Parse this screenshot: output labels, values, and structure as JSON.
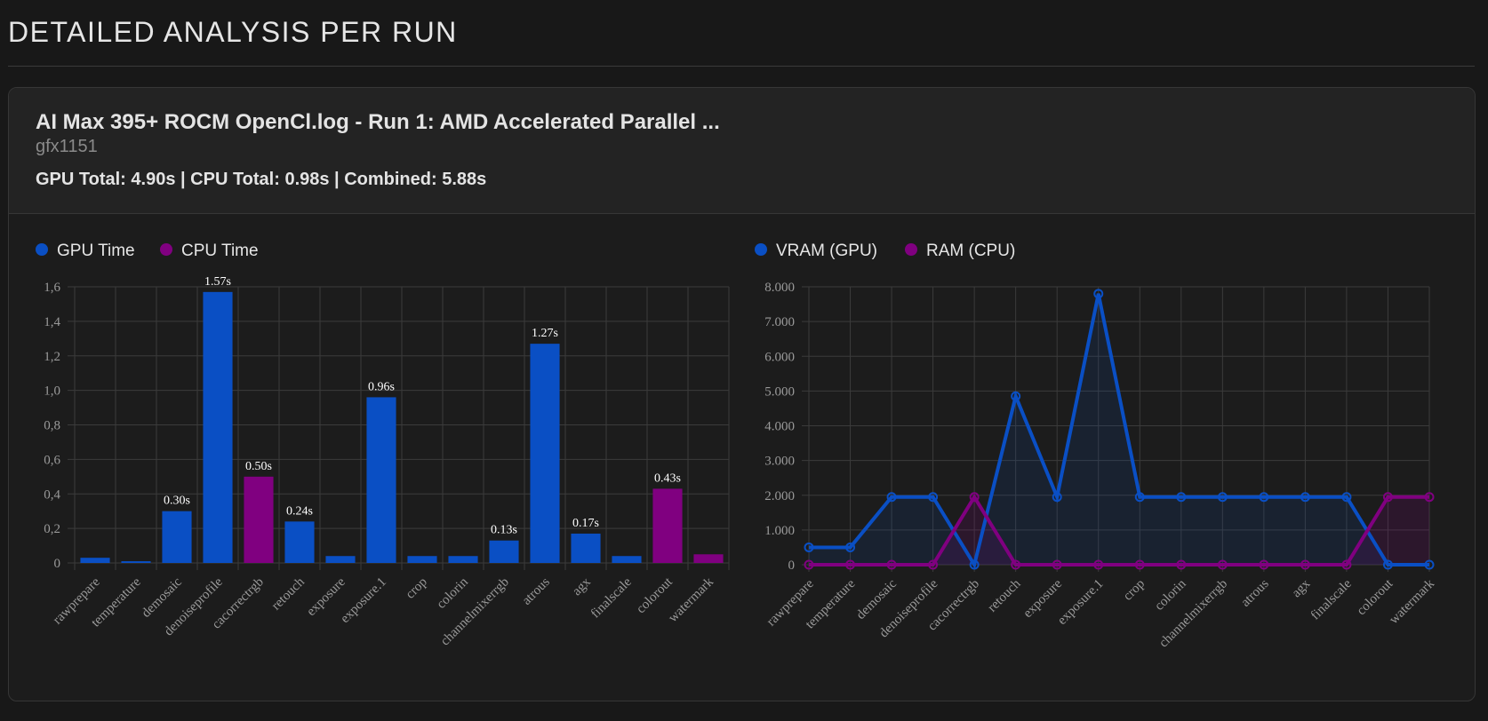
{
  "page": {
    "section_title": "DETAILED ANALYSIS PER RUN"
  },
  "run": {
    "title": "AI Max 395+ ROCM OpenCl.log - Run 1: AMD Accelerated Parallel ...",
    "device": "gfx1151",
    "totals": "GPU Total: 4.90s | CPU Total: 0.98s | Combined: 5.88s"
  },
  "colors": {
    "gpu": "#0a4fc4",
    "cpu": "#800080",
    "grid": "#3b3b3b",
    "axis_text": "#9a9a9a",
    "label_text": "#ffffff"
  },
  "chart_data": [
    {
      "type": "bar",
      "title": "",
      "legend": [
        {
          "name": "GPU Time",
          "color": "#0a4fc4"
        },
        {
          "name": "CPU Time",
          "color": "#800080"
        }
      ],
      "categories": [
        "rawprepare",
        "temperature",
        "demosaic",
        "denoiseprofile",
        "cacorrectrgb",
        "retouch",
        "exposure",
        "exposure.1",
        "crop",
        "colorin",
        "channelmixerrgb",
        "atrous",
        "agx",
        "finalscale",
        "colorout",
        "watermark"
      ],
      "values": [
        0.03,
        0.01,
        0.3,
        1.57,
        0.5,
        0.24,
        0.04,
        0.96,
        0.04,
        0.04,
        0.13,
        1.27,
        0.17,
        0.04,
        0.43,
        0.05
      ],
      "device": [
        "GPU",
        "GPU",
        "GPU",
        "GPU",
        "CPU",
        "GPU",
        "GPU",
        "GPU",
        "GPU",
        "GPU",
        "GPU",
        "GPU",
        "GPU",
        "GPU",
        "CPU",
        "CPU"
      ],
      "data_labels": [
        "",
        "",
        "0.30s",
        "1.57s",
        "0.50s",
        "0.24s",
        "",
        "0.96s",
        "",
        "",
        "0.13s",
        "1.27s",
        "0.17s",
        "",
        "0.43s",
        ""
      ],
      "yticks": [
        "0",
        "0,2",
        "0,4",
        "0,6",
        "0,8",
        "1,0",
        "1,2",
        "1,4",
        "1,6"
      ],
      "ylim": [
        0,
        1.6
      ],
      "xlabel": "",
      "ylabel": ""
    },
    {
      "type": "area",
      "title": "",
      "categories": [
        "rawprepare",
        "temperature",
        "demosaic",
        "denoiseprofile",
        "cacorrectrgb",
        "retouch",
        "exposure",
        "exposure.1",
        "crop",
        "colorin",
        "channelmixerrgb",
        "atrous",
        "agx",
        "finalscale",
        "colorout",
        "watermark"
      ],
      "series": [
        {
          "name": "VRAM (GPU)",
          "color": "#0a4fc4",
          "values": [
            500,
            500,
            1950,
            1950,
            0,
            4850,
            1950,
            7800,
            1950,
            1950,
            1950,
            1950,
            1950,
            1950,
            0,
            0
          ]
        },
        {
          "name": "RAM (CPU)",
          "color": "#800080",
          "values": [
            0,
            0,
            0,
            0,
            1950,
            0,
            0,
            0,
            0,
            0,
            0,
            0,
            0,
            0,
            1950,
            1950
          ]
        }
      ],
      "yticks": [
        "0",
        "1.000",
        "2.000",
        "3.000",
        "4.000",
        "5.000",
        "6.000",
        "7.000",
        "8.000"
      ],
      "ylim": [
        0,
        8000
      ],
      "xlabel": "",
      "ylabel": ""
    }
  ]
}
